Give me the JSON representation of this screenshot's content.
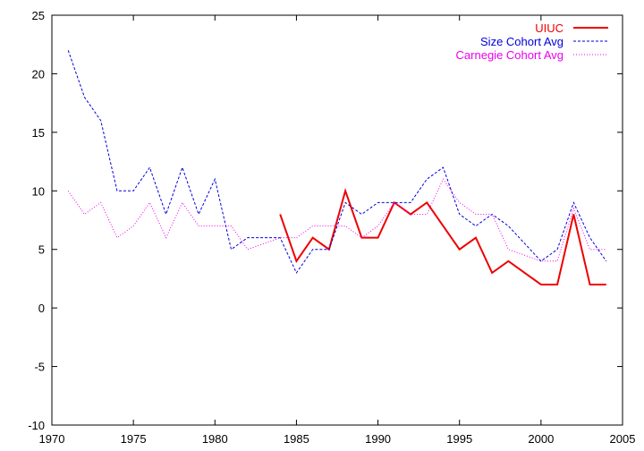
{
  "chart_data": {
    "type": "line",
    "title": "",
    "xlabel": "",
    "ylabel": "",
    "xlim": [
      1970,
      2005
    ],
    "ylim": [
      -10,
      25
    ],
    "x_ticks": [
      1970,
      1975,
      1980,
      1985,
      1990,
      1995,
      2000,
      2005
    ],
    "y_ticks": [
      -10,
      -5,
      0,
      5,
      10,
      15,
      20,
      25
    ],
    "grid": false,
    "legend_position": "top-right",
    "series": [
      {
        "name": "UIUC",
        "color": "#ee0000",
        "style": "solid",
        "x": [
          1984,
          1985,
          1986,
          1987,
          1988,
          1989,
          1990,
          1991,
          1992,
          1993,
          1994,
          1995,
          1996,
          1997,
          1998,
          1999,
          2000,
          2001,
          2002,
          2003,
          2004
        ],
        "y": [
          8,
          4,
          6,
          5,
          10,
          6,
          6,
          9,
          8,
          9,
          7,
          5,
          6,
          3,
          4,
          3,
          2,
          2,
          8,
          2,
          2
        ]
      },
      {
        "name": "Size Cohort Avg",
        "color": "#0000dd",
        "style": "dashed",
        "x": [
          1971,
          1972,
          1973,
          1974,
          1975,
          1976,
          1977,
          1978,
          1979,
          1980,
          1981,
          1982,
          1983,
          1984,
          1985,
          1986,
          1987,
          1988,
          1989,
          1990,
          1991,
          1992,
          1993,
          1994,
          1995,
          1996,
          1997,
          1998,
          1999,
          2000,
          2001,
          2002,
          2003,
          2004
        ],
        "y": [
          22,
          18,
          16,
          10,
          10,
          12,
          8,
          12,
          8,
          11,
          5,
          6,
          6,
          6,
          3,
          5,
          5,
          9,
          8,
          9,
          9,
          9,
          11,
          12,
          8,
          7,
          8,
          7,
          5.5,
          4,
          5,
          9,
          6,
          4
        ]
      },
      {
        "name": "Carnegie Cohort Avg",
        "color": "#ee00ee",
        "style": "dotted",
        "x": [
          1971,
          1972,
          1973,
          1974,
          1975,
          1976,
          1977,
          1978,
          1979,
          1980,
          1981,
          1982,
          1983,
          1984,
          1985,
          1986,
          1987,
          1988,
          1989,
          1990,
          1991,
          1992,
          1993,
          1994,
          1995,
          1996,
          1997,
          1998,
          1999,
          2000,
          2001,
          2002,
          2003,
          2004
        ],
        "y": [
          10,
          8,
          9,
          6,
          7,
          9,
          6,
          9,
          7,
          7,
          7,
          5,
          5.5,
          6,
          6,
          7,
          7,
          7,
          6,
          7,
          9,
          8,
          8,
          11,
          9,
          8,
          8,
          5,
          4.5,
          4,
          4,
          8.5,
          5,
          5
        ]
      }
    ]
  }
}
